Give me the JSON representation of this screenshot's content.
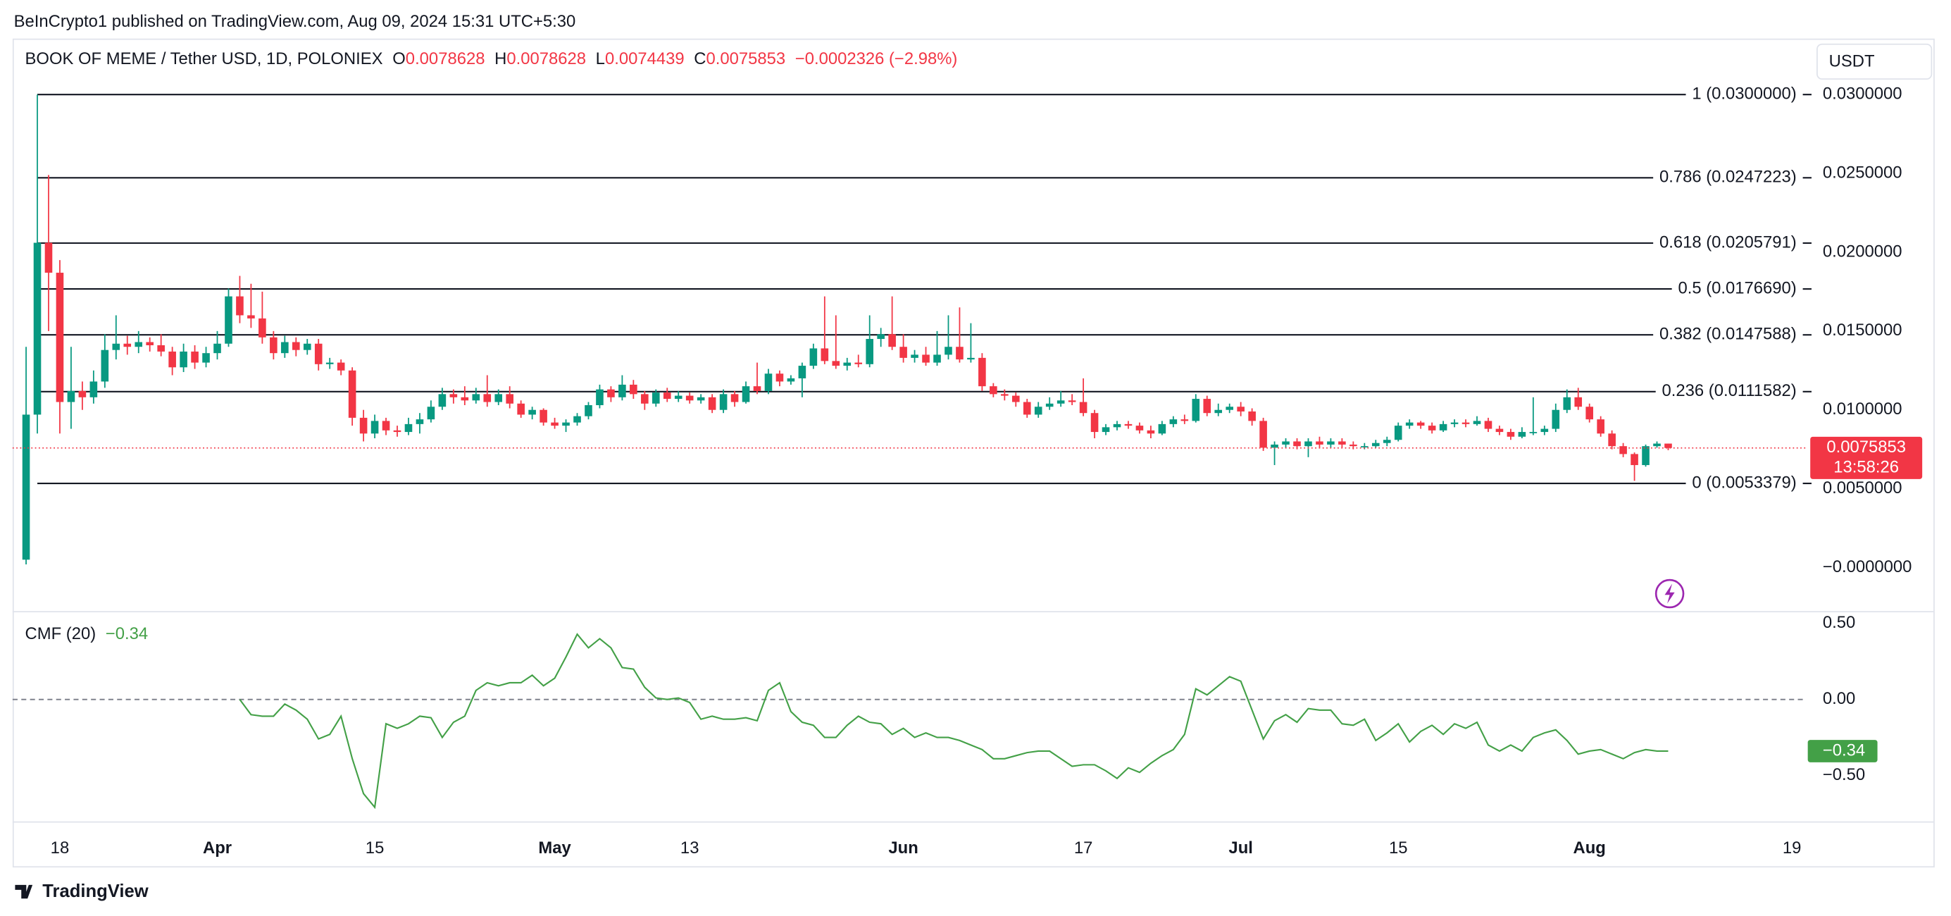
{
  "header": {
    "publisher": "BeInCrypto1 published on TradingView.com, Aug 09, 2024 15:31 UTC+5:30",
    "brand": "TradingView"
  },
  "chart_data": [
    {
      "type": "candlestick",
      "title": "BOOK OF MEME / Tether USD, 1D, POLONIEX",
      "ohlc_letters": [
        "O",
        "H",
        "L",
        "C"
      ],
      "change": "−0.0002326 (−2.98%)",
      "currency": "USDT",
      "countdown": "13:58:26",
      "up_color": "#089981",
      "down_color": "#f23645",
      "ylim": [
        -0.00276,
        0.03355
      ],
      "yticks": [
        {
          "value": 0.03,
          "label": "0.0300000"
        },
        {
          "value": 0.025,
          "label": "0.0250000"
        },
        {
          "value": 0.02,
          "label": "0.0200000"
        },
        {
          "value": 0.015,
          "label": "0.0150000"
        },
        {
          "value": 0.01,
          "label": "0.0100000"
        },
        {
          "value": 0.005,
          "label": "0.0050000"
        },
        {
          "value": 0,
          "label": "−0.0000000"
        }
      ],
      "xlim": [
        -1.2,
        158.3
      ],
      "xticks": [
        {
          "value": 3,
          "label": "18"
        },
        {
          "value": 17,
          "label": "Apr"
        },
        {
          "value": 31,
          "label": "15"
        },
        {
          "value": 47,
          "label": "May"
        },
        {
          "value": 59,
          "label": "13"
        },
        {
          "value": 78,
          "label": "Jun"
        },
        {
          "value": 94,
          "label": "17"
        },
        {
          "value": 108,
          "label": "Jul"
        },
        {
          "value": 122,
          "label": "15"
        },
        {
          "value": 139,
          "label": "Aug"
        },
        {
          "value": 157,
          "label": "19"
        }
      ],
      "fib_levels": [
        {
          "price": 0.03,
          "label": "1 (0.0300000)"
        },
        {
          "price": 0.0247223,
          "label": "0.786 (0.0247223)"
        },
        {
          "price": 0.0205791,
          "label": "0.618 (0.0205791)"
        },
        {
          "price": 0.017669,
          "label": "0.5 (0.0176690)"
        },
        {
          "price": 0.0147588,
          "label": "0.382 (0.0147588)"
        },
        {
          "price": 0.0111582,
          "label": "0.236 (0.0111582)"
        },
        {
          "price": 0.0053379,
          "label": "0 (0.0053379)"
        }
      ],
      "candles": [
        [
          0.0005,
          0.014,
          0.0002,
          0.0097
        ],
        [
          0.0097,
          0.03,
          0.0085,
          0.0206
        ],
        [
          0.0206,
          0.0249,
          0.015,
          0.0187
        ],
        [
          0.0187,
          0.0195,
          0.0085,
          0.0105
        ],
        [
          0.0105,
          0.014,
          0.0088,
          0.0112
        ],
        [
          0.0112,
          0.0118,
          0.01,
          0.0108
        ],
        [
          0.0108,
          0.0125,
          0.0104,
          0.0118
        ],
        [
          0.0118,
          0.0148,
          0.0114,
          0.0138
        ],
        [
          0.0138,
          0.016,
          0.0132,
          0.0142
        ],
        [
          0.0142,
          0.0147,
          0.0135,
          0.014
        ],
        [
          0.014,
          0.015,
          0.0136,
          0.0143
        ],
        [
          0.0143,
          0.0146,
          0.0137,
          0.0141
        ],
        [
          0.0141,
          0.0148,
          0.0134,
          0.0137
        ],
        [
          0.0137,
          0.014,
          0.0122,
          0.0127
        ],
        [
          0.0127,
          0.0142,
          0.0124,
          0.0137
        ],
        [
          0.0137,
          0.0141,
          0.0126,
          0.013
        ],
        [
          0.013,
          0.014,
          0.0127,
          0.0136
        ],
        [
          0.0136,
          0.015,
          0.0132,
          0.0142
        ],
        [
          0.0142,
          0.0177,
          0.014,
          0.0172
        ],
        [
          0.0172,
          0.0185,
          0.0155,
          0.016
        ],
        [
          0.016,
          0.018,
          0.0152,
          0.0158
        ],
        [
          0.0158,
          0.0175,
          0.0142,
          0.0146
        ],
        [
          0.0146,
          0.015,
          0.0132,
          0.0136
        ],
        [
          0.0136,
          0.0147,
          0.0133,
          0.0143
        ],
        [
          0.0143,
          0.0146,
          0.0134,
          0.0138
        ],
        [
          0.0138,
          0.0145,
          0.0135,
          0.0142
        ],
        [
          0.0142,
          0.0145,
          0.0125,
          0.0129
        ],
        [
          0.0129,
          0.0133,
          0.0126,
          0.013
        ],
        [
          0.013,
          0.0132,
          0.0122,
          0.0125
        ],
        [
          0.0125,
          0.0127,
          0.009,
          0.0095
        ],
        [
          0.0095,
          0.01,
          0.008,
          0.0085
        ],
        [
          0.0085,
          0.0097,
          0.0082,
          0.0093
        ],
        [
          0.0093,
          0.0095,
          0.0084,
          0.0087
        ],
        [
          0.0087,
          0.009,
          0.0083,
          0.0086
        ],
        [
          0.0086,
          0.0095,
          0.0084,
          0.0091
        ],
        [
          0.0091,
          0.0098,
          0.0085,
          0.0094
        ],
        [
          0.0094,
          0.0106,
          0.0092,
          0.0102
        ],
        [
          0.0102,
          0.0114,
          0.01,
          0.011
        ],
        [
          0.011,
          0.0113,
          0.0104,
          0.0108
        ],
        [
          0.0108,
          0.0115,
          0.0103,
          0.0106
        ],
        [
          0.0106,
          0.0114,
          0.0104,
          0.011
        ],
        [
          0.011,
          0.0122,
          0.0102,
          0.0105
        ],
        [
          0.0105,
          0.0113,
          0.0103,
          0.011
        ],
        [
          0.011,
          0.0115,
          0.0101,
          0.0104
        ],
        [
          0.0104,
          0.0106,
          0.0095,
          0.0097
        ],
        [
          0.0097,
          0.0102,
          0.0094,
          0.01
        ],
        [
          0.01,
          0.0101,
          0.009,
          0.0092
        ],
        [
          0.0092,
          0.0095,
          0.0088,
          0.009
        ],
        [
          0.009,
          0.0094,
          0.0086,
          0.0092
        ],
        [
          0.0092,
          0.0098,
          0.009,
          0.0096
        ],
        [
          0.0096,
          0.0105,
          0.0094,
          0.0103
        ],
        [
          0.0103,
          0.0116,
          0.0101,
          0.0113
        ],
        [
          0.0113,
          0.0115,
          0.0105,
          0.0108
        ],
        [
          0.0108,
          0.0122,
          0.0106,
          0.0116
        ],
        [
          0.0116,
          0.0119,
          0.0107,
          0.011
        ],
        [
          0.011,
          0.0112,
          0.01,
          0.0104
        ],
        [
          0.0104,
          0.0113,
          0.0102,
          0.0111
        ],
        [
          0.0111,
          0.0114,
          0.0105,
          0.0107
        ],
        [
          0.0107,
          0.0112,
          0.0105,
          0.0109
        ],
        [
          0.0109,
          0.0111,
          0.0104,
          0.0106
        ],
        [
          0.0106,
          0.011,
          0.0104,
          0.0108
        ],
        [
          0.0108,
          0.011,
          0.0098,
          0.01
        ],
        [
          0.01,
          0.0113,
          0.0098,
          0.011
        ],
        [
          0.011,
          0.0112,
          0.0102,
          0.0105
        ],
        [
          0.0105,
          0.0118,
          0.0104,
          0.0115
        ],
        [
          0.0115,
          0.013,
          0.011,
          0.0112
        ],
        [
          0.0112,
          0.0126,
          0.011,
          0.0123
        ],
        [
          0.0123,
          0.0125,
          0.0115,
          0.0118
        ],
        [
          0.0118,
          0.0122,
          0.0116,
          0.012
        ],
        [
          0.012,
          0.013,
          0.0108,
          0.0128
        ],
        [
          0.0128,
          0.0142,
          0.0126,
          0.0139
        ],
        [
          0.0139,
          0.0172,
          0.0129,
          0.0131
        ],
        [
          0.0131,
          0.016,
          0.0126,
          0.0128
        ],
        [
          0.0128,
          0.0133,
          0.0125,
          0.013
        ],
        [
          0.013,
          0.0135,
          0.0127,
          0.0129
        ],
        [
          0.0129,
          0.016,
          0.0127,
          0.0145
        ],
        [
          0.0145,
          0.0152,
          0.014,
          0.0148
        ],
        [
          0.0148,
          0.0172,
          0.0138,
          0.014
        ],
        [
          0.014,
          0.0148,
          0.013,
          0.0133
        ],
        [
          0.0133,
          0.0138,
          0.013,
          0.0135
        ],
        [
          0.0135,
          0.014,
          0.0128,
          0.013
        ],
        [
          0.013,
          0.015,
          0.0128,
          0.0135
        ],
        [
          0.0135,
          0.016,
          0.0132,
          0.014
        ],
        [
          0.014,
          0.0165,
          0.013,
          0.0132
        ],
        [
          0.0132,
          0.0155,
          0.013,
          0.0133
        ],
        [
          0.0133,
          0.0136,
          0.0112,
          0.0115
        ],
        [
          0.0115,
          0.0117,
          0.0108,
          0.011
        ],
        [
          0.011,
          0.0113,
          0.0106,
          0.0109
        ],
        [
          0.0109,
          0.0111,
          0.0102,
          0.0105
        ],
        [
          0.0105,
          0.0107,
          0.0095,
          0.0097
        ],
        [
          0.0097,
          0.0105,
          0.0095,
          0.0102
        ],
        [
          0.0102,
          0.0108,
          0.01,
          0.0104
        ],
        [
          0.0104,
          0.0112,
          0.0102,
          0.0106
        ],
        [
          0.0106,
          0.011,
          0.0103,
          0.0105
        ],
        [
          0.0105,
          0.012,
          0.0096,
          0.0098
        ],
        [
          0.0098,
          0.01,
          0.0082,
          0.0086
        ],
        [
          0.0086,
          0.0091,
          0.0084,
          0.0089
        ],
        [
          0.0089,
          0.0093,
          0.0087,
          0.0091
        ],
        [
          0.0091,
          0.0093,
          0.0088,
          0.009
        ],
        [
          0.009,
          0.0092,
          0.0085,
          0.0087
        ],
        [
          0.0087,
          0.009,
          0.0082,
          0.0085
        ],
        [
          0.0085,
          0.0093,
          0.0084,
          0.0091
        ],
        [
          0.0091,
          0.0096,
          0.0089,
          0.0094
        ],
        [
          0.0094,
          0.0097,
          0.0091,
          0.0093
        ],
        [
          0.0093,
          0.011,
          0.0092,
          0.0107
        ],
        [
          0.0107,
          0.0109,
          0.0096,
          0.0098
        ],
        [
          0.0098,
          0.0104,
          0.0096,
          0.01
        ],
        [
          0.01,
          0.0104,
          0.0098,
          0.0102
        ],
        [
          0.0102,
          0.0105,
          0.0096,
          0.0099
        ],
        [
          0.0099,
          0.0101,
          0.009,
          0.0093
        ],
        [
          0.0093,
          0.0095,
          0.0074,
          0.0076
        ],
        [
          0.0076,
          0.008,
          0.0065,
          0.0078
        ],
        [
          0.0078,
          0.0082,
          0.0076,
          0.008
        ],
        [
          0.008,
          0.0082,
          0.0075,
          0.0077
        ],
        [
          0.0077,
          0.0082,
          0.007,
          0.008
        ],
        [
          0.008,
          0.0083,
          0.0076,
          0.0078
        ],
        [
          0.0078,
          0.0082,
          0.0076,
          0.008
        ],
        [
          0.008,
          0.0082,
          0.0076,
          0.0078
        ],
        [
          0.0078,
          0.008,
          0.0075,
          0.0077
        ],
        [
          0.0077,
          0.0079,
          0.0075,
          0.0077
        ],
        [
          0.0077,
          0.0081,
          0.0076,
          0.0079
        ],
        [
          0.0079,
          0.0083,
          0.0077,
          0.0081
        ],
        [
          0.0081,
          0.0092,
          0.008,
          0.009
        ],
        [
          0.009,
          0.0094,
          0.0088,
          0.0092
        ],
        [
          0.0092,
          0.0093,
          0.0088,
          0.009
        ],
        [
          0.009,
          0.0092,
          0.0085,
          0.0087
        ],
        [
          0.0087,
          0.0093,
          0.0086,
          0.0091
        ],
        [
          0.0091,
          0.0094,
          0.0089,
          0.0092
        ],
        [
          0.0092,
          0.0094,
          0.0089,
          0.0091
        ],
        [
          0.0091,
          0.0096,
          0.009,
          0.0093
        ],
        [
          0.0093,
          0.0095,
          0.0086,
          0.0088
        ],
        [
          0.0088,
          0.009,
          0.0084,
          0.0086
        ],
        [
          0.0086,
          0.0088,
          0.0081,
          0.0083
        ],
        [
          0.0083,
          0.0089,
          0.0082,
          0.0086
        ],
        [
          0.0086,
          0.0108,
          0.0084,
          0.0086
        ],
        [
          0.0086,
          0.009,
          0.0084,
          0.0088
        ],
        [
          0.0088,
          0.0104,
          0.0086,
          0.01
        ],
        [
          0.01,
          0.0113,
          0.0098,
          0.0108
        ],
        [
          0.0108,
          0.0114,
          0.01,
          0.0102
        ],
        [
          0.0102,
          0.0104,
          0.0092,
          0.0094
        ],
        [
          0.0094,
          0.0096,
          0.0083,
          0.0085
        ],
        [
          0.0085,
          0.0087,
          0.0075,
          0.0077
        ],
        [
          0.0077,
          0.0079,
          0.007,
          0.0072
        ],
        [
          0.0072,
          0.0073,
          0.0055,
          0.0065
        ],
        [
          0.0065,
          0.0078,
          0.0064,
          0.0077
        ],
        [
          0.0077,
          0.008,
          0.0076,
          0.0078628
        ],
        [
          0.0078628,
          0.0078628,
          0.0074439,
          0.0075853
        ]
      ]
    },
    {
      "type": "line",
      "title": "CMF (20)",
      "last_label": "−0.34",
      "ylim": [
        -0.803,
        0.582
      ],
      "yticks": [
        {
          "value": 0.5,
          "label": "0.50"
        },
        {
          "value": 0,
          "label": "0.00"
        },
        {
          "value": -0.5,
          "label": "−0.50"
        }
      ],
      "series": [
        {
          "name": "CMF (20)",
          "color": "#43a047",
          "values": [
            null,
            null,
            null,
            null,
            null,
            null,
            null,
            null,
            null,
            null,
            null,
            null,
            null,
            null,
            null,
            null,
            null,
            null,
            null,
            0.0,
            -0.1,
            -0.11,
            -0.11,
            -0.03,
            -0.07,
            -0.13,
            -0.26,
            -0.23,
            -0.11,
            -0.39,
            -0.62,
            -0.71,
            -0.16,
            -0.19,
            -0.16,
            -0.11,
            -0.12,
            -0.25,
            -0.15,
            -0.11,
            0.06,
            0.11,
            0.09,
            0.11,
            0.11,
            0.16,
            0.09,
            0.14,
            0.28,
            0.43,
            0.34,
            0.4,
            0.34,
            0.21,
            0.2,
            0.08,
            0.01,
            0.0,
            0.01,
            -0.02,
            -0.13,
            -0.11,
            -0.13,
            -0.13,
            -0.12,
            -0.14,
            0.06,
            0.11,
            -0.08,
            -0.15,
            -0.17,
            -0.25,
            -0.25,
            -0.17,
            -0.11,
            -0.15,
            -0.16,
            -0.23,
            -0.19,
            -0.25,
            -0.22,
            -0.25,
            -0.25,
            -0.27,
            -0.3,
            -0.33,
            -0.39,
            -0.39,
            -0.37,
            -0.35,
            -0.34,
            -0.34,
            -0.39,
            -0.44,
            -0.43,
            -0.43,
            -0.47,
            -0.52,
            -0.45,
            -0.48,
            -0.42,
            -0.37,
            -0.33,
            -0.23,
            0.07,
            0.03,
            0.09,
            0.15,
            0.12,
            -0.07,
            -0.26,
            -0.14,
            -0.1,
            -0.15,
            -0.06,
            -0.07,
            -0.07,
            -0.16,
            -0.17,
            -0.13,
            -0.27,
            -0.22,
            -0.16,
            -0.28,
            -0.21,
            -0.17,
            -0.23,
            -0.16,
            -0.19,
            -0.15,
            -0.3,
            -0.34,
            -0.3,
            -0.34,
            -0.25,
            -0.22,
            -0.2,
            -0.27,
            -0.36,
            -0.34,
            -0.33,
            -0.36,
            -0.39,
            -0.35,
            -0.33,
            -0.34,
            -0.34
          ]
        }
      ]
    }
  ]
}
